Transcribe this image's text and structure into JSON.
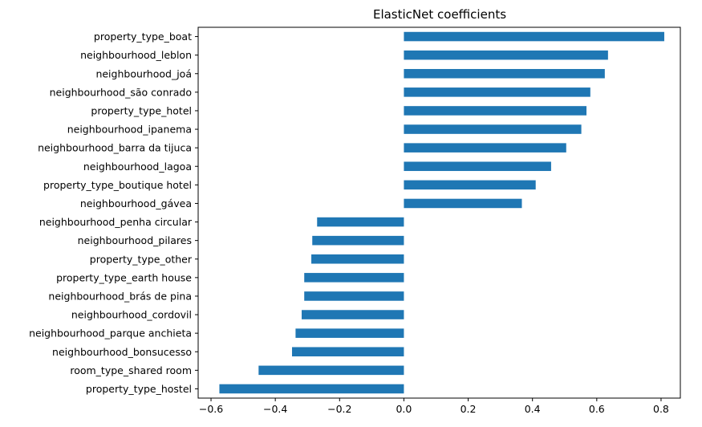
{
  "chart_data": {
    "type": "bar",
    "orientation": "horizontal",
    "title": "ElasticNet coefficients",
    "xlabel": "",
    "ylabel": "",
    "xlim": [
      -0.64,
      0.86
    ],
    "xticks": [
      -0.6,
      -0.4,
      -0.2,
      0.0,
      0.2,
      0.4,
      0.6,
      0.8
    ],
    "xtick_labels": [
      "−0.6",
      "−0.4",
      "−0.2",
      "0.0",
      "0.2",
      "0.4",
      "0.6",
      "0.8"
    ],
    "grid": false,
    "bar_color": "#1f77b4",
    "categories": [
      "property_type_boat",
      "neighbourhood_leblon",
      "neighbourhood_joá",
      "neighbourhood_são conrado",
      "property_type_hotel",
      "neighbourhood_ipanema",
      "neighbourhood_barra da tijuca",
      "neighbourhood_lagoa",
      "property_type_boutique hotel",
      "neighbourhood_gávea",
      "neighbourhood_penha circular",
      "neighbourhood_pilares",
      "property_type_other",
      "property_type_earth house",
      "neighbourhood_brás de pina",
      "neighbourhood_cordovil",
      "neighbourhood_parque anchieta",
      "neighbourhood_bonsucesso",
      "room_type_shared room",
      "property_type_hostel"
    ],
    "values": [
      0.81,
      0.635,
      0.625,
      0.58,
      0.568,
      0.552,
      0.505,
      0.458,
      0.41,
      0.367,
      -0.27,
      -0.285,
      -0.288,
      -0.31,
      -0.31,
      -0.318,
      -0.337,
      -0.348,
      -0.452,
      -0.574
    ]
  }
}
